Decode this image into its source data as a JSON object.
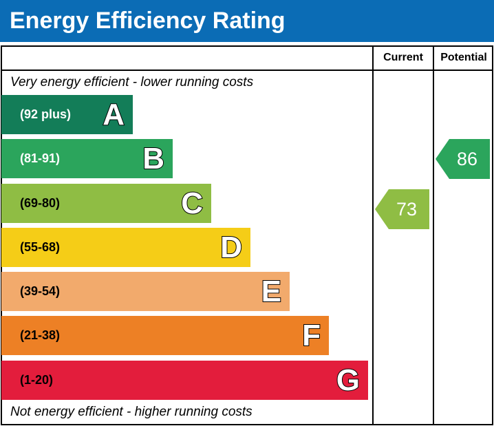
{
  "header": {
    "title": "Energy Efficiency Rating"
  },
  "columns": {
    "current": "Current",
    "potential": "Potential"
  },
  "top_note": "Very energy efficient - lower running costs",
  "bottom_note": "Not energy efficient - higher running costs",
  "chart_data": {
    "type": "bar",
    "categories": [
      "A",
      "B",
      "C",
      "D",
      "E",
      "F",
      "G"
    ],
    "ranges": [
      "(92 plus)",
      "(81-91)",
      "(69-80)",
      "(55-68)",
      "(39-54)",
      "(21-38)",
      "(1-20)"
    ],
    "colors": [
      "#137d58",
      "#2ba55c",
      "#8fbd44",
      "#f5cd17",
      "#f2aa6c",
      "#ed8025",
      "#e31d3c"
    ],
    "range_text_colors": [
      "#ffffff",
      "#ffffff",
      "#000000",
      "#000000",
      "#000000",
      "#000000",
      "#000000"
    ],
    "current": {
      "value": 73,
      "band": "C",
      "color": "#8fbd44"
    },
    "potential": {
      "value": 86,
      "band": "B",
      "color": "#2ba55c"
    }
  }
}
